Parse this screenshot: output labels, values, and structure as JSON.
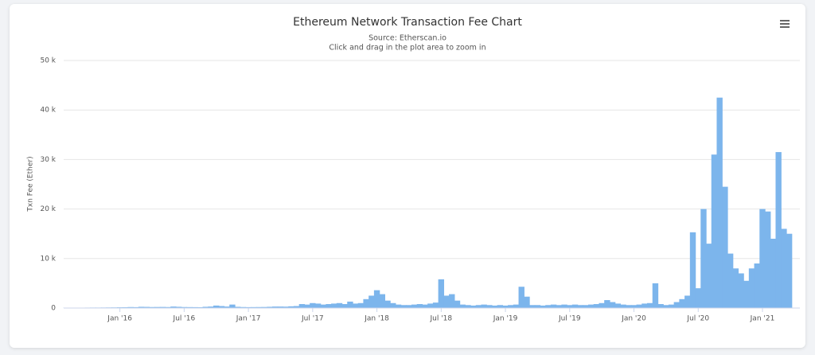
{
  "chart_data": {
    "type": "bar",
    "title": "Ethereum Network Transaction Fee Chart",
    "subtitle": "Source: Etherscan.io",
    "note": "Click and drag in the plot area to zoom in",
    "y_label": "Txn Fee (Ether)",
    "color": "#7cb5ec",
    "grid": true,
    "ylim": [
      0,
      50000
    ],
    "yticks": [
      0,
      {
        "value": 10000,
        "label": "10 k"
      },
      {
        "value": 20000,
        "label": "20 k"
      },
      {
        "value": 30000,
        "label": "30 k"
      },
      {
        "value": 40000,
        "label": "40 k"
      },
      {
        "value": 50000,
        "label": "50 k"
      }
    ],
    "categories": [
      null,
      null,
      null,
      null,
      null,
      null,
      null,
      null,
      null,
      null,
      "Jan '16",
      null,
      null,
      null,
      null,
      null,
      null,
      null,
      null,
      null,
      null,
      null,
      "Jul '16",
      null,
      null,
      null,
      null,
      null,
      null,
      null,
      null,
      null,
      null,
      null,
      "Jan '17",
      null,
      null,
      null,
      null,
      null,
      null,
      null,
      null,
      null,
      null,
      null,
      "Jul '17",
      null,
      null,
      null,
      null,
      null,
      null,
      null,
      null,
      null,
      null,
      null,
      "Jan '18",
      null,
      null,
      null,
      null,
      null,
      null,
      null,
      null,
      null,
      null,
      null,
      "Jul '18",
      null,
      null,
      null,
      null,
      null,
      null,
      null,
      null,
      null,
      null,
      null,
      "Jan '19",
      null,
      null,
      null,
      null,
      null,
      null,
      null,
      null,
      null,
      null,
      null,
      "Jul '19",
      null,
      null,
      null,
      null,
      null,
      null,
      null,
      null,
      null,
      null,
      null,
      "Jan '20",
      null,
      null,
      null,
      null,
      null,
      null,
      null,
      null,
      null,
      null,
      null,
      "Jul '20",
      null,
      null,
      null,
      null,
      null,
      null,
      null,
      null,
      null,
      null,
      null,
      "Jan '21",
      null,
      null,
      null,
      null,
      null
    ],
    "values": [
      60,
      70,
      80,
      80,
      90,
      100,
      100,
      110,
      120,
      130,
      150,
      160,
      200,
      180,
      250,
      230,
      200,
      210,
      220,
      200,
      300,
      250,
      200,
      190,
      180,
      170,
      250,
      300,
      500,
      400,
      300,
      700,
      250,
      200,
      180,
      190,
      200,
      210,
      250,
      300,
      300,
      280,
      350,
      400,
      800,
      700,
      1000,
      900,
      700,
      800,
      900,
      1000,
      800,
      1300,
      900,
      1000,
      1800,
      2500,
      3600,
      2800,
      1500,
      1000,
      700,
      600,
      600,
      700,
      800,
      700,
      900,
      1100,
      5800,
      2500,
      2800,
      1500,
      700,
      600,
      500,
      600,
      700,
      600,
      500,
      600,
      500,
      600,
      700,
      4300,
      2300,
      600,
      600,
      500,
      600,
      700,
      600,
      700,
      600,
      700,
      600,
      600,
      700,
      800,
      1000,
      1600,
      1200,
      900,
      700,
      600,
      600,
      700,
      900,
      1000,
      5000,
      800,
      600,
      700,
      1200,
      1800,
      2500,
      15300,
      4000,
      20000,
      13000,
      31000,
      42500,
      24500,
      11000,
      8000,
      7000,
      5500,
      8000,
      9000,
      20000,
      19500,
      14000,
      31500,
      16000,
      15000
    ]
  }
}
